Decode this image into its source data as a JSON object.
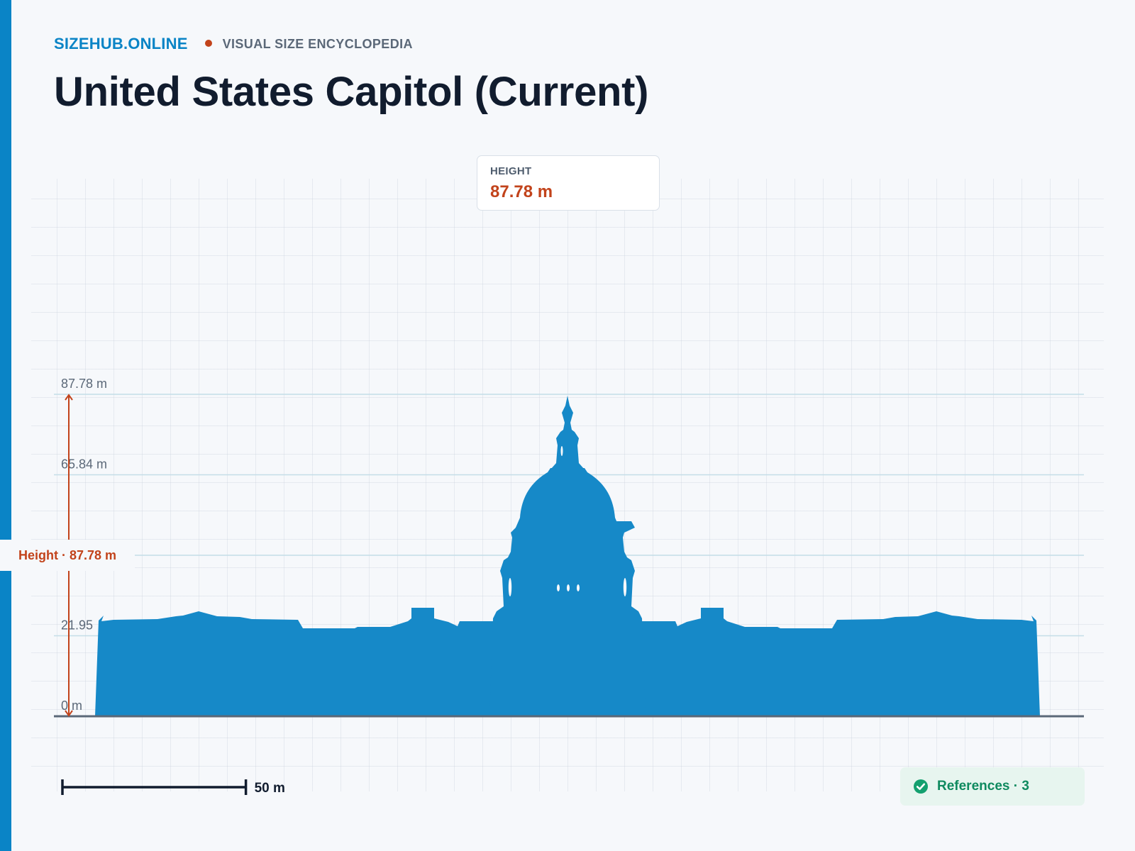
{
  "header": {
    "brand": "SIZEHUB.ONLINE",
    "tagline": "VISUAL SIZE ENCYCLOPEDIA",
    "title": "United States Capitol (Current)"
  },
  "height_card": {
    "label": "HEIGHT",
    "value": "87.78 m"
  },
  "diagram": {
    "subject": "United States Capitol",
    "height_m": 87.78,
    "axis_ticks": [
      {
        "value": 87.78,
        "label": "87.78 m"
      },
      {
        "value": 65.84,
        "label": "65.84 m"
      },
      {
        "value": 43.89,
        "label": ""
      },
      {
        "value": 21.95,
        "label": "21.95"
      },
      {
        "value": 0,
        "label": "0 m"
      }
    ],
    "height_marker_label": "Height · 87.78 m",
    "scale_bar": {
      "value_m": 50,
      "label": "50 m"
    },
    "colors": {
      "silhouette": "#1689c8",
      "accent": "#c2431b",
      "gridline": "#c4dde8",
      "baseline": "#5b6878"
    }
  },
  "references": {
    "label": "References · 3",
    "icon": "check-circle-icon"
  }
}
